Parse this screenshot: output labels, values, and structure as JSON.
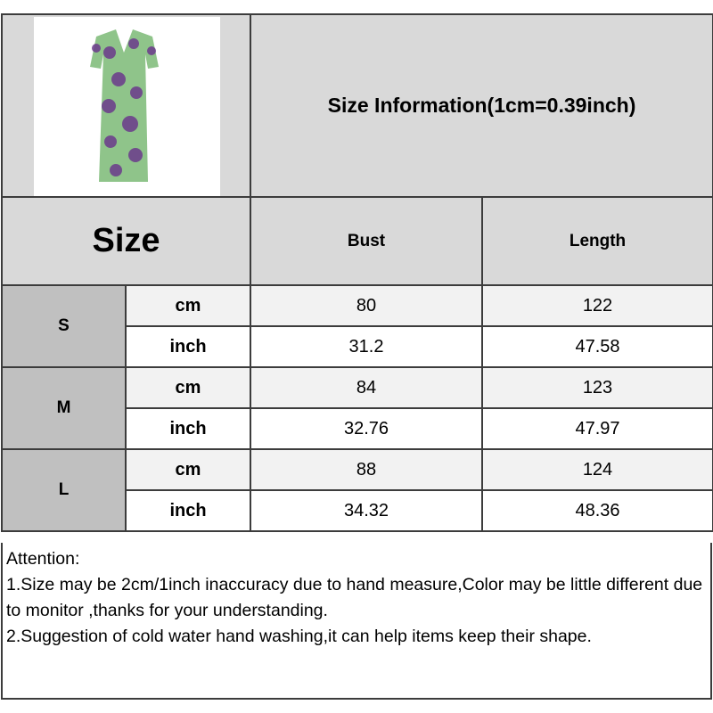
{
  "title": "Size Information(1cm=0.39inch)",
  "header": {
    "size_label": "Size",
    "columns": [
      "Bust",
      "Length"
    ]
  },
  "rows": [
    {
      "size": "S",
      "cm": {
        "unit": "cm",
        "bust": "80",
        "length": "122"
      },
      "inch": {
        "unit": "inch",
        "bust": "31.2",
        "length": "47.58"
      }
    },
    {
      "size": "M",
      "cm": {
        "unit": "cm",
        "bust": "84",
        "length": "123"
      },
      "inch": {
        "unit": "inch",
        "bust": "32.76",
        "length": "47.97"
      }
    },
    {
      "size": "L",
      "cm": {
        "unit": "cm",
        "bust": "88",
        "length": "124"
      },
      "inch": {
        "unit": "inch",
        "bust": "34.32",
        "length": "48.36"
      }
    }
  ],
  "notes": {
    "heading": "Attention:",
    "lines": [
      "1.Size may be 2cm/1inch inaccuracy due to hand measure,Color may be little different due to monitor ,thanks for your understanding.",
      "2.Suggestion of cold water hand washing,it can help items keep their shape."
    ]
  },
  "colors": {
    "header_gray": "#d9d9d9",
    "size_gray": "#c0c0c0",
    "cm_row": "#f2f2f2",
    "dress_green": "#8fc48a",
    "dress_purple": "#6b3a8c"
  }
}
